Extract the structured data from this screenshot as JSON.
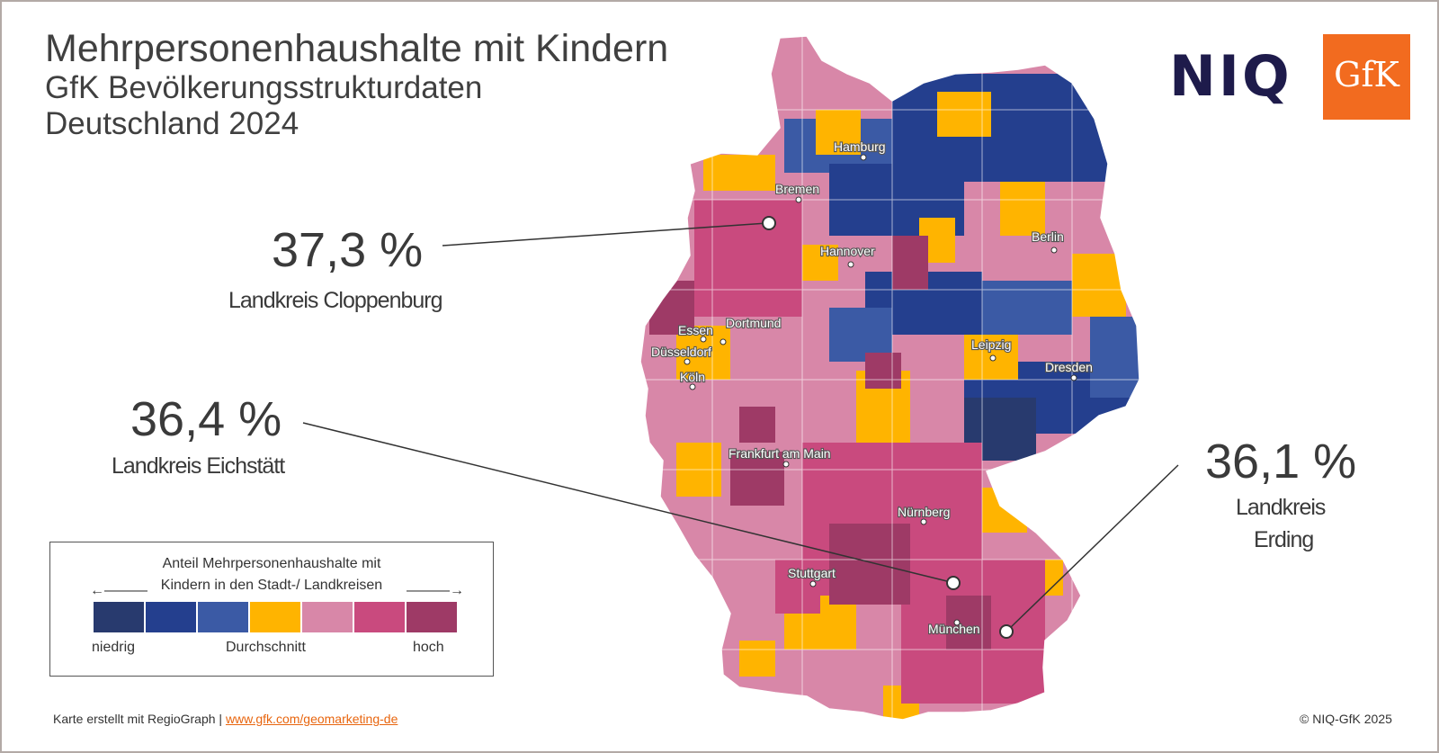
{
  "title": {
    "line1": "Mehrpersonenhaushalte mit Kindern",
    "line2": "GfK Bevölkerungsstrukturdaten",
    "line3": "Deutschland 2024"
  },
  "logos": {
    "niq": "NIQ",
    "gfk": "GfK"
  },
  "highlights": [
    {
      "value": "37,3 %",
      "label": "Landkreis Cloppenburg"
    },
    {
      "value": "36,4 %",
      "label": "Landkreis Eichstätt"
    },
    {
      "value": "36,1 %",
      "label_line1": "Landkreis",
      "label_line2": "Erding"
    }
  ],
  "cities": [
    "Hamburg",
    "Bremen",
    "Hannover",
    "Berlin",
    "Essen",
    "Dortmund",
    "Düsseldorf",
    "Köln",
    "Leipzig",
    "Dresden",
    "Frankfurt am Main",
    "Nürnberg",
    "Stuttgart",
    "München"
  ],
  "legend": {
    "title_line1": "Anteil Mehrpersonenhaushalte mit",
    "title_line2": "Kindern in den Stadt-/ Landkreisen",
    "arrow_left": "←———",
    "arrow_right": "———→",
    "low": "niedrig",
    "mid": "Durchschnitt",
    "high": "hoch",
    "colors": [
      "#283a6e",
      "#243f8e",
      "#3b5aa5",
      "#ffb400",
      "#d887a8",
      "#c94a7e",
      "#9e3a66"
    ]
  },
  "footer": {
    "left_text": "Karte erstellt mit RegioGraph | ",
    "link_text": "www.gfk.com/geomarketing-de",
    "right_text": "© NIQ-GfK 2025"
  }
}
